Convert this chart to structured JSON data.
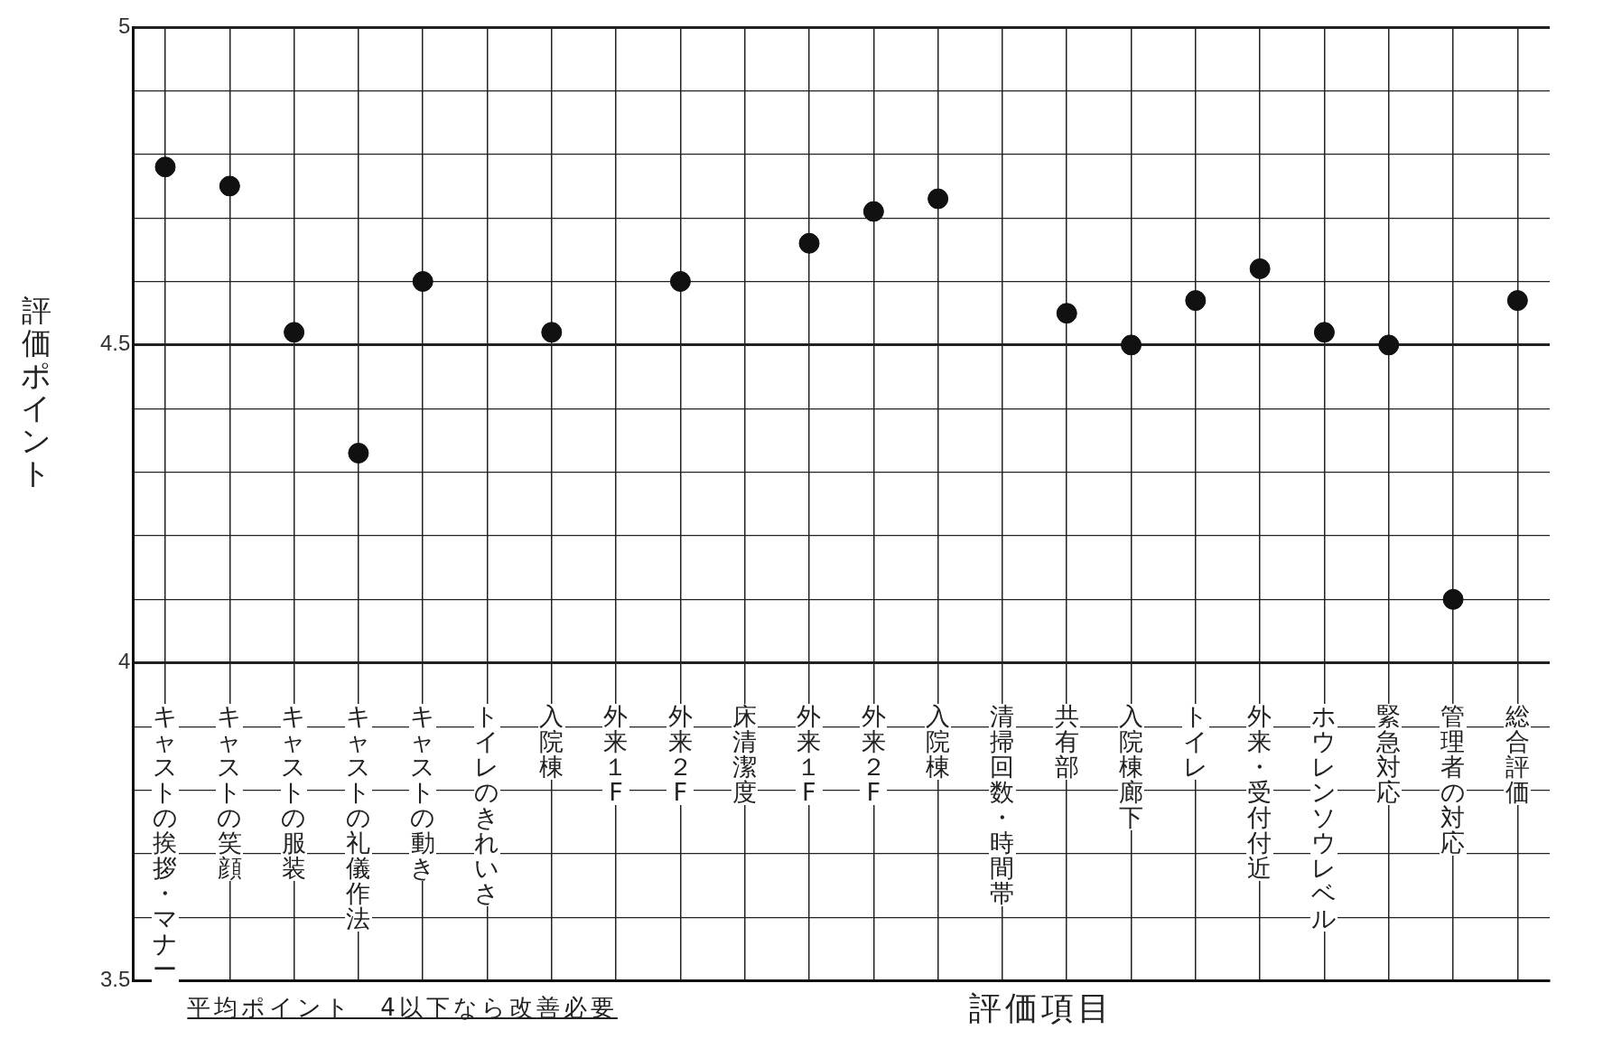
{
  "chart_data": {
    "type": "scatter",
    "ylabel": "評価ポイント",
    "xlabel": "評価項目",
    "annotations": [
      "平均ポイント　4以下なら改善必要"
    ],
    "categories": [
      "キャストの挨拶・マナー",
      "キャストの笑顔",
      "キャストの服装",
      "キャストの礼儀作法",
      "キャストの動き",
      "トイレのきれいさ",
      "入院棟",
      "外来１F",
      "外来２F",
      "床清潔度",
      "外来１F",
      "外来２F",
      "入院棟",
      "清掃回数・時間帯",
      "共有部",
      "入院棟廊下",
      "トイレ",
      "外来・受付付近",
      "ホウレンソウレベル",
      "緊急対応",
      "管理者の対応",
      "総合評価"
    ],
    "values": [
      4.78,
      4.75,
      4.52,
      4.33,
      4.6,
      null,
      4.52,
      null,
      4.6,
      null,
      4.66,
      4.71,
      4.73,
      null,
      4.55,
      4.5,
      4.57,
      4.62,
      4.52,
      4.5,
      4.1,
      4.57
    ],
    "color": "#111111",
    "marker": "circle",
    "grid": true,
    "legend": false,
    "ylim": [
      3.5,
      5
    ],
    "yticks": [
      3.5,
      {
        "value": 3.6,
        "label": null
      },
      {
        "value": 3.7,
        "label": null
      },
      {
        "value": 3.8,
        "label": null
      },
      {
        "value": 3.9,
        "label": null
      },
      4,
      {
        "value": 4.1,
        "label": null
      },
      {
        "value": 4.2,
        "label": null
      },
      {
        "value": 4.3,
        "label": null
      },
      {
        "value": 4.4,
        "label": null
      },
      4.5,
      {
        "value": 4.6,
        "label": null
      },
      {
        "value": 4.7,
        "label": null
      },
      {
        "value": 4.8,
        "label": null
      },
      {
        "value": 4.9,
        "label": null
      },
      5
    ]
  }
}
